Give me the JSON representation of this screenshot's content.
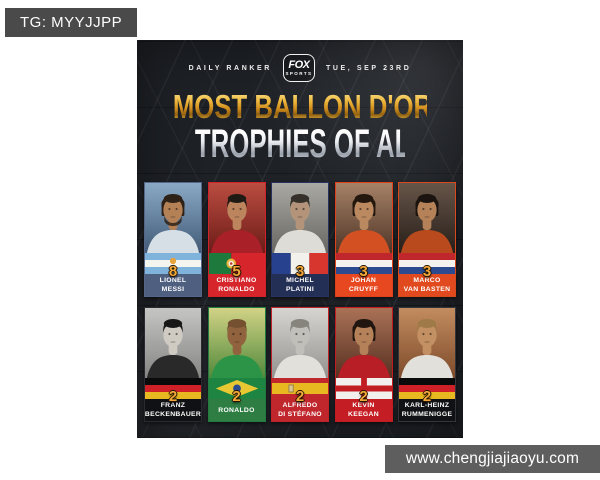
{
  "overlays": {
    "telegram": "TG: MYYJJPP",
    "website": "www.chengjiajiaoyu.com"
  },
  "poster": {
    "header": {
      "left_label": "DAILY RANKER",
      "logo_top": "FOX",
      "logo_bottom": "SPORTS",
      "right_label": "TUE, SEP 23RD"
    },
    "title_line1": "MOST BALLON D'OR",
    "title_line2": "TROPHIES OF ALL-TIME",
    "colors": {
      "title_gold": "#edb63c",
      "title_silver": "#e8eaee",
      "trophy_number": "#f3a83a",
      "background": "#1e2126"
    },
    "players": [
      {
        "first": "LIONEL",
        "last": "MESSI",
        "trophies": "8",
        "flag": "argentina",
        "card": "#55668a",
        "band": "#4e5f80",
        "photo": {
          "bg1": "#93b4d2",
          "bg2": "#46617f",
          "jersey": "#e4edf5",
          "skin": "#c08a5c",
          "hair": "#31241a",
          "beard": true,
          "longhair": true
        }
      },
      {
        "first": "CRISTIANO",
        "last": "RONALDO",
        "trophies": "5",
        "flag": "portugal",
        "card": "#d2232b",
        "band": "#d7252c",
        "photo": {
          "bg1": "#c75245",
          "bg2": "#731e1a",
          "jersey": "#b5222c",
          "skin": "#c98e63",
          "hair": "#221c17"
        }
      },
      {
        "first": "MICHEL",
        "last": "PLATINI",
        "trophies": "3",
        "flag": "france",
        "card": "#27335e",
        "band": "#242f56",
        "photo": {
          "bg1": "#b5b4ae",
          "bg2": "#6f6e68",
          "jersey": "#eceae4",
          "skin": "#bf9e83",
          "hair": "#3a332d"
        }
      },
      {
        "first": "JOHAN",
        "last": "CRUYFF",
        "trophies": "3",
        "flag": "netherlands",
        "card": "#e0401c",
        "band": "#e8481f",
        "photo": {
          "bg1": "#b08a6d",
          "bg2": "#55392a",
          "jersey": "#e05525",
          "skin": "#c79266",
          "hair": "#26190f",
          "longhair": true
        }
      },
      {
        "first": "MARCO",
        "last": "VAN BASTEN",
        "trophies": "3",
        "flag": "netherlands",
        "card": "#d8491e",
        "band": "#e04a1e",
        "photo": {
          "bg1": "#6d5a4d",
          "bg2": "#2a211b",
          "jersey": "#c44f1f",
          "skin": "#c08a5e",
          "hair": "#1d1510",
          "longhair": true
        }
      },
      {
        "first": "FRANZ",
        "last": "BECKENBAUER",
        "trophies": "2",
        "flag": "germany",
        "card": "#2a2b30",
        "band": "#101114",
        "photo": {
          "bg1": "#d2d2d0",
          "bg2": "#8e8e8c",
          "jersey": "#2c2c2c",
          "skin": "#dcd7cf",
          "hair": "#191919"
        }
      },
      {
        "first": "RONALDO",
        "last": "",
        "trophies": "2",
        "flag": "brazil",
        "card": "#237a40",
        "band": "#2e7d42",
        "photo": {
          "bg1": "#dfe08e",
          "bg2": "#57923f",
          "jersey": "#2f9e4c",
          "skin": "#9a6a42",
          "hair": "#7d5634"
        }
      },
      {
        "first": "ALFREDO",
        "last": "DI STÉFANO",
        "trophies": "2",
        "flag": "spain",
        "card": "#bf2329",
        "band": "#c0272d",
        "photo": {
          "bg1": "#e4e3df",
          "bg2": "#9d9c98",
          "jersey": "#f1efe9",
          "skin": "#cccbc5",
          "hair": "#8f8d85"
        }
      },
      {
        "first": "KEVIN",
        "last": "KEEGAN",
        "trophies": "2",
        "flag": "england",
        "card": "#c21c23",
        "band": "#c41e24",
        "photo": {
          "bg1": "#b5795c",
          "bg2": "#5c3424",
          "jersey": "#c32028",
          "skin": "#c08a5f",
          "hair": "#221710",
          "longhair": true
        }
      },
      {
        "first": "KARL-HEINZ",
        "last": "RUMMENIGGE",
        "trophies": "2",
        "flag": "germany",
        "card": "#34353a",
        "band": "#101114",
        "photo": {
          "bg1": "#cf9566",
          "bg2": "#86502d",
          "jersey": "#f0eee8",
          "skin": "#cf9a6a",
          "hair": "#a8824e"
        }
      }
    ]
  }
}
